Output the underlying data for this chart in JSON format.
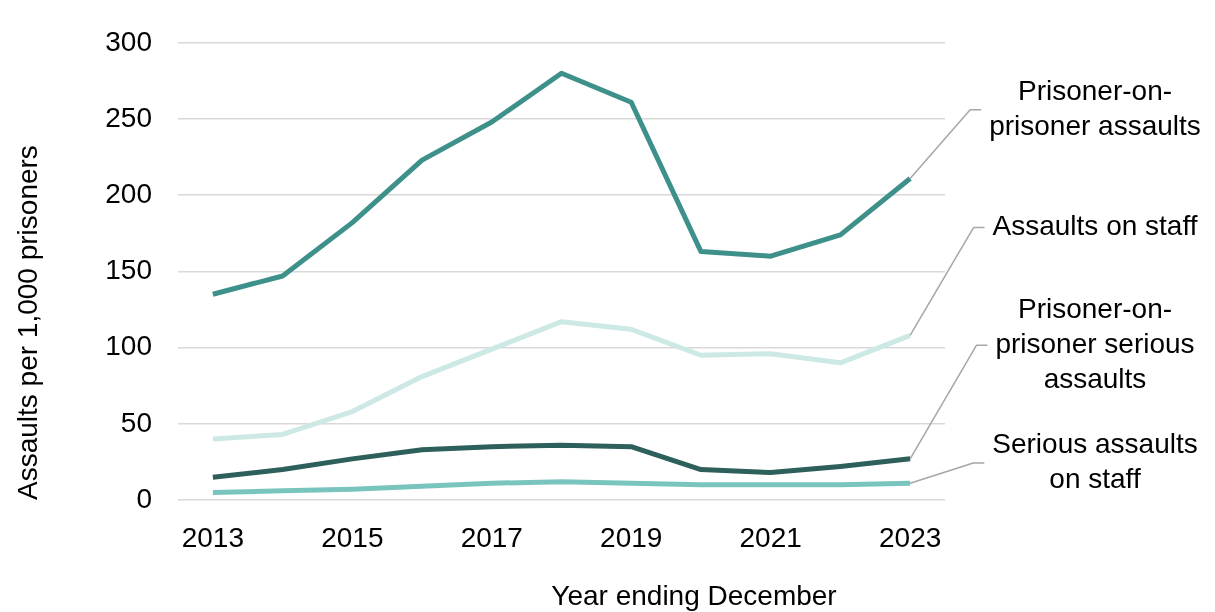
{
  "chart_data": {
    "type": "line",
    "xlabel": "Year ending December",
    "ylabel": "Assaults per 1,000 prisoners",
    "categories": [
      "2013",
      null,
      "2015",
      null,
      "2017",
      null,
      "2019",
      null,
      "2021",
      null,
      "2023"
    ],
    "ylim": [
      0,
      300
    ],
    "yticks": [
      0,
      50,
      100,
      150,
      200,
      250,
      300
    ],
    "grid": "y",
    "legend": false,
    "marker": "none",
    "line_style": "solid",
    "series": [
      {
        "name": "Prisoner-on-prisoner assaults",
        "color": "#3e918a",
        "values": [
          135,
          147,
          182,
          223,
          248,
          280,
          261,
          163,
          160,
          174,
          211
        ]
      },
      {
        "name": "Assaults on staff",
        "color": "#cde9e5",
        "values": [
          40,
          43,
          58,
          81,
          99,
          117,
          112,
          95,
          96,
          90,
          108
        ]
      },
      {
        "name": "Prisoner-on-prisoner serious assaults",
        "color": "#2d605a",
        "values": [
          15,
          20,
          27,
          33,
          35,
          36,
          35,
          20,
          18,
          22,
          27
        ]
      },
      {
        "name": "Serious assaults on staff",
        "color": "#79c5bd",
        "values": [
          5,
          6,
          7,
          9,
          11,
          12,
          11,
          10,
          10,
          10,
          11
        ]
      }
    ]
  }
}
